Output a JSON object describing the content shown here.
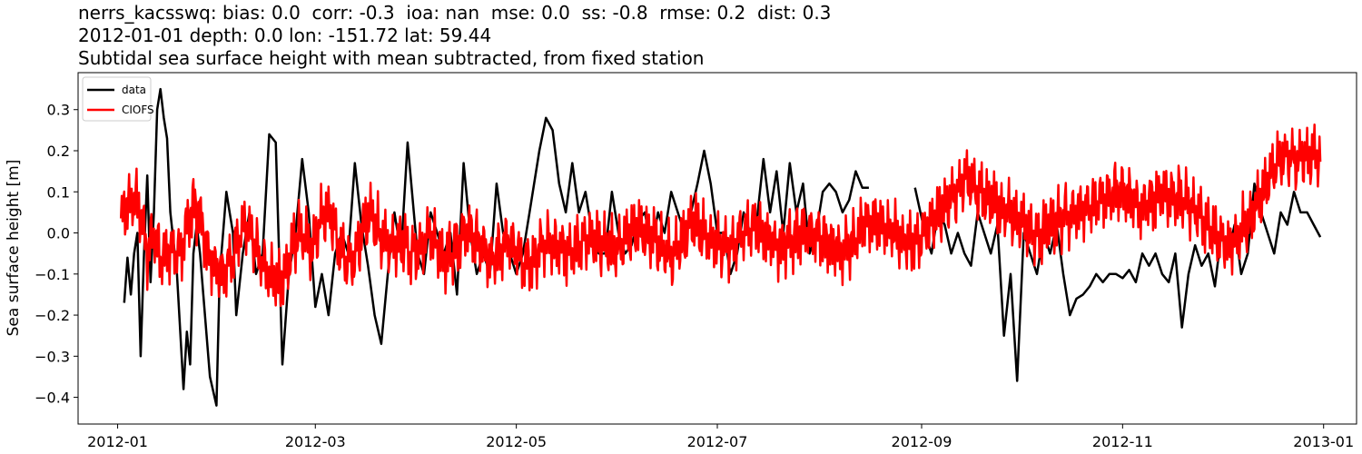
{
  "header": {
    "title_line1": "nerrs_kacsswq: bias: 0.0  corr: -0.3  ioa: nan  mse: 0.0  ss: -0.8  rmse: 0.2  dist: 0.3",
    "title_line2": "2012-01-01 depth: 0.0 lon: -151.72 lat: 59.44",
    "title_line3": "Subtidal sea surface height with mean subtracted, from fixed station"
  },
  "chart_data": {
    "type": "line",
    "xlabel": "",
    "ylabel": "Sea surface height [m]",
    "xlim": [
      "2011-12-20",
      "2013-01-11"
    ],
    "ylim": [
      -0.465,
      0.39
    ],
    "x_ticks": [
      "2012-01",
      "2012-03",
      "2012-05",
      "2012-07",
      "2012-09",
      "2012-11",
      "2013-01"
    ],
    "y_ticks": [
      0.3,
      0.2,
      0.1,
      0.0,
      -0.1,
      -0.2,
      -0.3,
      -0.4
    ],
    "y_tick_labels": [
      "0.3",
      "0.2",
      "0.1",
      "0.0",
      "−0.1",
      "−0.2",
      "−0.3",
      "−0.4"
    ],
    "grid": false,
    "legend_position": "top-left",
    "series": [
      {
        "name": "data",
        "color": "#000000",
        "segments": [
          {
            "x": [
              "2012-01-03",
              "2012-01-04",
              "2012-01-05",
              "2012-01-06",
              "2012-01-07",
              "2012-01-08",
              "2012-01-09",
              "2012-01-10",
              "2012-01-11",
              "2012-01-12",
              "2012-01-13",
              "2012-01-14",
              "2012-01-15",
              "2012-01-16",
              "2012-01-17",
              "2012-01-19",
              "2012-01-21",
              "2012-01-22",
              "2012-01-23",
              "2012-01-24",
              "2012-01-25",
              "2012-01-26",
              "2012-01-27",
              "2012-01-29",
              "2012-01-31",
              "2012-02-01",
              "2012-02-02",
              "2012-02-03",
              "2012-02-04",
              "2012-02-05",
              "2012-02-06",
              "2012-02-08",
              "2012-02-10",
              "2012-02-12",
              "2012-02-14",
              "2012-02-16",
              "2012-02-18",
              "2012-02-20",
              "2012-02-22",
              "2012-02-24",
              "2012-02-26",
              "2012-02-28",
              "2012-03-01",
              "2012-03-03",
              "2012-03-05",
              "2012-03-07",
              "2012-03-09",
              "2012-03-11",
              "2012-03-13",
              "2012-03-15",
              "2012-03-17",
              "2012-03-19",
              "2012-03-21",
              "2012-03-23",
              "2012-03-25",
              "2012-03-27",
              "2012-03-29",
              "2012-04-01",
              "2012-04-03",
              "2012-04-05",
              "2012-04-07",
              "2012-04-09",
              "2012-04-11",
              "2012-04-13",
              "2012-04-15",
              "2012-04-17",
              "2012-04-19",
              "2012-04-21",
              "2012-04-23",
              "2012-04-25",
              "2012-04-27",
              "2012-04-29",
              "2012-05-01",
              "2012-05-03",
              "2012-05-05",
              "2012-05-08",
              "2012-05-10",
              "2012-05-12",
              "2012-05-14",
              "2012-05-16",
              "2012-05-18",
              "2012-05-20",
              "2012-05-22",
              "2012-05-24",
              "2012-05-26",
              "2012-05-28",
              "2012-05-30",
              "2012-06-01",
              "2012-06-03",
              "2012-06-05",
              "2012-06-07",
              "2012-06-09",
              "2012-06-11",
              "2012-06-13",
              "2012-06-15",
              "2012-06-17",
              "2012-06-19",
              "2012-06-21",
              "2012-06-23",
              "2012-06-25",
              "2012-06-27",
              "2012-06-29",
              "2012-07-01",
              "2012-07-03",
              "2012-07-05",
              "2012-07-07",
              "2012-07-09",
              "2012-07-11",
              "2012-07-13",
              "2012-07-15",
              "2012-07-17",
              "2012-07-19",
              "2012-07-21",
              "2012-07-23",
              "2012-07-25",
              "2012-07-27",
              "2012-07-29",
              "2012-07-31",
              "2012-08-02",
              "2012-08-04",
              "2012-08-06",
              "2012-08-08",
              "2012-08-10",
              "2012-08-12",
              "2012-08-14",
              "2012-08-16"
            ],
            "y": [
              -0.17,
              -0.06,
              -0.15,
              -0.05,
              0.0,
              -0.3,
              -0.05,
              0.14,
              -0.12,
              0.05,
              0.3,
              0.35,
              0.28,
              0.23,
              0.05,
              -0.1,
              -0.38,
              -0.24,
              -0.32,
              -0.05,
              0.02,
              -0.05,
              -0.15,
              -0.35,
              -0.42,
              -0.1,
              0.0,
              0.1,
              0.05,
              0.0,
              -0.2,
              -0.05,
              0.05,
              -0.1,
              -0.05,
              0.24,
              0.22,
              -0.32,
              -0.1,
              0.0,
              0.18,
              0.05,
              -0.18,
              -0.1,
              -0.2,
              -0.05,
              0.0,
              -0.05,
              0.17,
              0.02,
              -0.08,
              -0.2,
              -0.27,
              -0.1,
              0.05,
              -0.05,
              0.22,
              -0.05,
              -0.1,
              0.05,
              0.0,
              -0.05,
              0.0,
              -0.15,
              0.17,
              0.0,
              -0.1,
              -0.05,
              -0.1,
              0.12,
              0.0,
              -0.05,
              -0.1,
              -0.05,
              0.05,
              0.2,
              0.28,
              0.25,
              0.12,
              0.05,
              0.17,
              0.05,
              0.1,
              0.0,
              -0.05,
              -0.05,
              0.1,
              0.0,
              -0.05,
              -0.03,
              0.03,
              0.05,
              -0.04,
              0.05,
              0.0,
              0.1,
              0.05,
              0.0,
              0.05,
              0.12,
              0.2,
              0.12,
              0.0,
              0.0,
              -0.1,
              -0.05,
              0.05,
              0.0,
              0.03,
              0.18,
              0.05,
              0.15,
              0.0,
              0.17,
              0.05,
              0.12,
              -0.05,
              0.0,
              0.1,
              0.12,
              0.1,
              0.05,
              0.08,
              0.15,
              0.11,
              0.11
            ]
          },
          {
            "x": [
              "2012-08-30",
              "2012-09-02",
              "2012-09-04",
              "2012-09-06",
              "2012-09-08",
              "2012-09-10",
              "2012-09-12",
              "2012-09-14",
              "2012-09-16",
              "2012-09-18",
              "2012-09-20",
              "2012-09-22",
              "2012-09-24",
              "2012-09-26",
              "2012-09-28",
              "2012-09-30",
              "2012-10-02",
              "2012-10-04",
              "2012-10-06",
              "2012-10-08",
              "2012-10-10",
              "2012-10-12",
              "2012-10-14",
              "2012-10-16",
              "2012-10-18",
              "2012-10-20",
              "2012-10-22",
              "2012-10-24",
              "2012-10-26",
              "2012-10-28",
              "2012-10-30",
              "2012-11-01",
              "2012-11-03",
              "2012-11-05",
              "2012-11-07",
              "2012-11-09",
              "2012-11-11",
              "2012-11-13",
              "2012-11-15",
              "2012-11-17",
              "2012-11-19",
              "2012-11-21",
              "2012-11-23",
              "2012-11-25",
              "2012-11-27",
              "2012-11-29",
              "2012-12-01",
              "2012-12-03",
              "2012-12-05",
              "2012-12-07",
              "2012-12-09",
              "2012-12-11",
              "2012-12-13",
              "2012-12-15",
              "2012-12-17",
              "2012-12-19",
              "2012-12-21",
              "2012-12-23",
              "2012-12-25",
              "2012-12-27",
              "2012-12-29",
              "2012-12-31"
            ],
            "y": [
              0.11,
              0.0,
              -0.05,
              0.05,
              0.02,
              -0.05,
              0.0,
              -0.05,
              -0.08,
              0.05,
              0.0,
              -0.05,
              0.02,
              -0.25,
              -0.1,
              -0.36,
              0.0,
              -0.05,
              -0.1,
              0.0,
              -0.05,
              0.02,
              -0.1,
              -0.2,
              -0.16,
              -0.15,
              -0.13,
              -0.1,
              -0.12,
              -0.1,
              -0.1,
              -0.11,
              -0.09,
              -0.12,
              -0.05,
              -0.08,
              -0.05,
              -0.1,
              -0.12,
              -0.05,
              -0.23,
              -0.1,
              -0.03,
              -0.08,
              -0.05,
              -0.13,
              0.0,
              -0.05,
              0.02,
              -0.1,
              -0.05,
              0.12,
              0.05,
              0.0,
              -0.05,
              0.05,
              0.02,
              0.1,
              0.05,
              0.05,
              0.02,
              -0.01
            ]
          }
        ]
      },
      {
        "name": "CIOFS",
        "color": "#ff0000",
        "x_start": "2012-01-02",
        "x_end": "2012-12-31",
        "y_step_days": 2,
        "y": [
          0.03,
          0.06,
          0.09,
          0.05,
          -0.05,
          0.0,
          -0.06,
          -0.04,
          -0.03,
          -0.05,
          0.02,
          0.07,
          0.04,
          -0.04,
          -0.07,
          -0.1,
          -0.09,
          -0.05,
          0.0,
          0.02,
          0.0,
          -0.06,
          -0.09,
          -0.11,
          -0.12,
          -0.1,
          -0.04,
          0.0,
          -0.02,
          -0.05,
          0.01,
          0.05,
          0.03,
          -0.03,
          -0.06,
          -0.08,
          -0.04,
          0.02,
          0.04,
          0.01,
          -0.03,
          -0.04,
          -0.02,
          -0.03,
          -0.05,
          -0.04,
          -0.02,
          0.0,
          -0.03,
          -0.06,
          -0.05,
          -0.03,
          0.0,
          0.01,
          -0.02,
          -0.04,
          -0.06,
          -0.05,
          -0.03,
          -0.02,
          -0.04,
          -0.06,
          -0.07,
          -0.05,
          -0.03,
          -0.02,
          -0.03,
          -0.04,
          -0.05,
          -0.04,
          -0.02,
          -0.01,
          -0.02,
          -0.03,
          -0.04,
          -0.05,
          -0.03,
          -0.01,
          0.0,
          0.01,
          -0.01,
          -0.02,
          -0.04,
          -0.06,
          -0.05,
          -0.03,
          0.0,
          0.02,
          0.01,
          -0.01,
          -0.02,
          -0.03,
          -0.04,
          -0.02,
          0.0,
          0.01,
          0.02,
          0.01,
          0.0,
          -0.02,
          -0.03,
          -0.02,
          -0.01,
          0.0,
          0.01,
          0.0,
          -0.01,
          -0.02,
          -0.03,
          -0.04,
          -0.03,
          -0.02,
          0.0,
          0.02,
          0.03,
          0.02,
          0.01,
          0.0,
          -0.01,
          -0.02,
          -0.03,
          -0.02,
          0.0,
          0.02,
          0.04,
          0.06,
          0.08,
          0.1,
          0.13,
          0.12,
          0.1,
          0.09,
          0.08,
          0.06,
          0.05,
          0.04,
          0.03,
          0.02,
          0.0,
          -0.01,
          0.0,
          0.02,
          0.03,
          0.04,
          0.05,
          0.05,
          0.06,
          0.07,
          0.08,
          0.09,
          0.09,
          0.1,
          0.1,
          0.09,
          0.08,
          0.07,
          0.08,
          0.09,
          0.1,
          0.1,
          0.09,
          0.08,
          0.07,
          0.05,
          0.03,
          0.02,
          0.0,
          -0.02,
          -0.03,
          -0.02,
          0.0,
          0.02,
          0.05,
          0.08,
          0.12,
          0.15,
          0.18
        ]
      }
    ]
  },
  "legend": {
    "data_label": "data",
    "ciofs_label": "CIOFS"
  }
}
